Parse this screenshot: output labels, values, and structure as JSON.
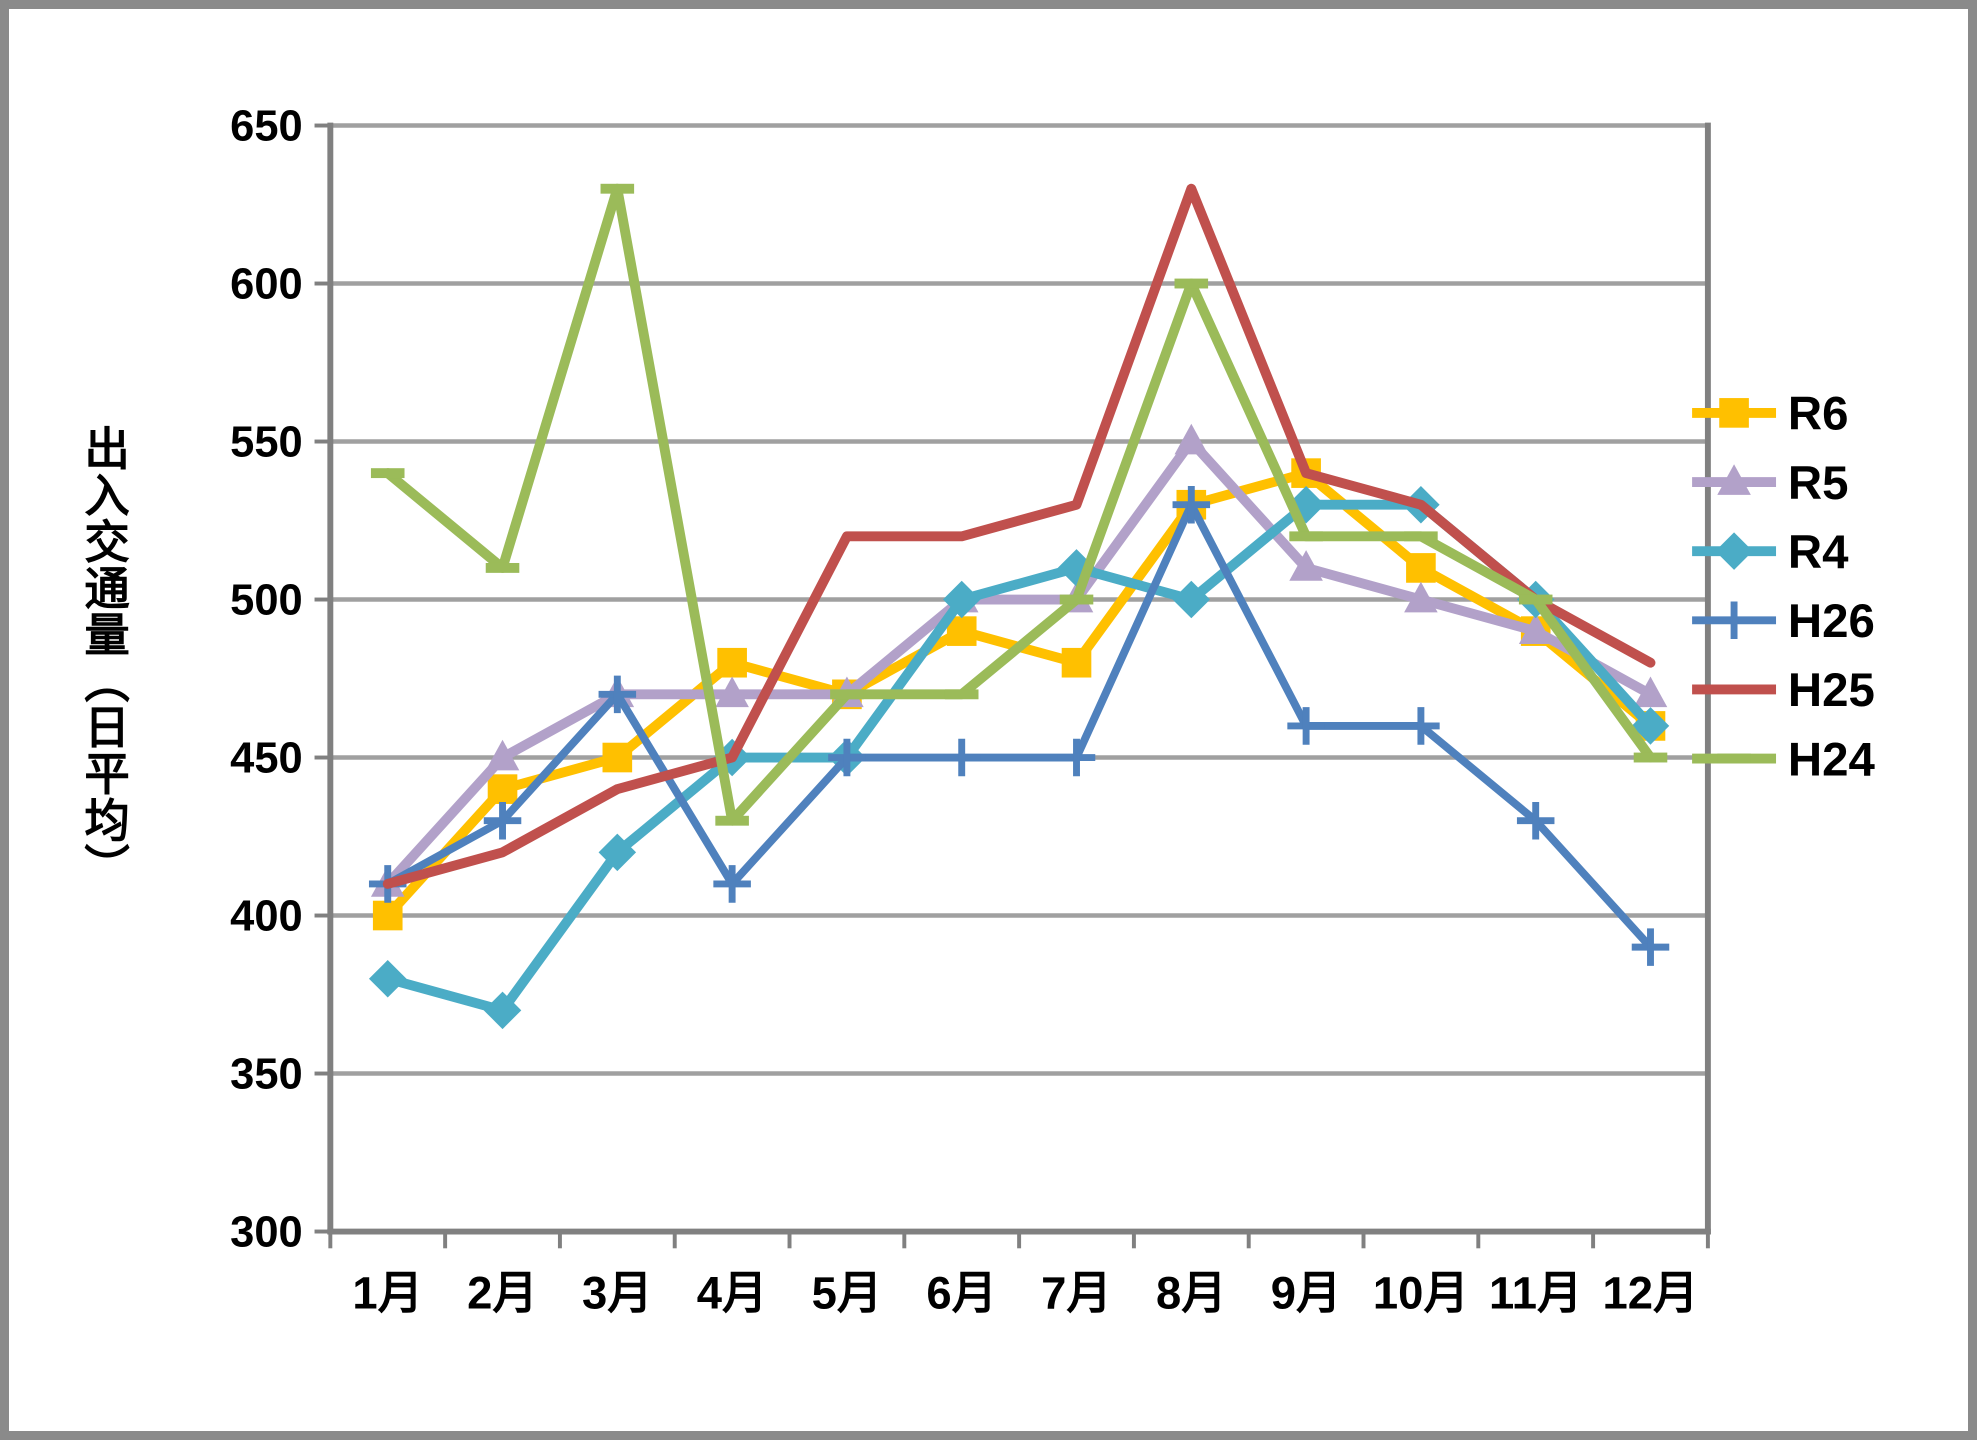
{
  "frame": {
    "border_color": "#8a8a8a",
    "background": "#ffffff",
    "gridline_color": "#a0a0a0",
    "axis_color": "#808080"
  },
  "chart_data": {
    "type": "line",
    "title": "",
    "ylabel": "出入交通量（日平均）",
    "xlabel": "",
    "grid": true,
    "legend_position": "right",
    "ylim": [
      300,
      650
    ],
    "y_ticks": [
      650,
      600,
      550,
      500,
      450,
      400,
      350,
      300
    ],
    "categories": [
      "1月",
      "2月",
      "3月",
      "4月",
      "5月",
      "6月",
      "7月",
      "8月",
      "9月",
      "10月",
      "11月",
      "12月"
    ],
    "series": [
      {
        "name": "R6",
        "color": "#FFC000",
        "marker": "square",
        "values": [
          400,
          440,
          450,
          480,
          470,
          490,
          480,
          530,
          540,
          510,
          490,
          460
        ]
      },
      {
        "name": "R5",
        "color": "#B2A1C9",
        "marker": "triangle",
        "values": [
          410,
          450,
          470,
          470,
          470,
          500,
          500,
          550,
          510,
          500,
          490,
          470
        ]
      },
      {
        "name": "R4",
        "color": "#4BACC6",
        "marker": "diamond",
        "values": [
          380,
          370,
          420,
          450,
          450,
          500,
          510,
          500,
          530,
          530,
          500,
          460
        ]
      },
      {
        "name": "H26",
        "color": "#4F81BD",
        "marker": "plus",
        "values": [
          410,
          430,
          470,
          410,
          450,
          450,
          450,
          530,
          460,
          460,
          430,
          390
        ]
      },
      {
        "name": "H25",
        "color": "#C0504D",
        "marker": "none",
        "values": [
          410,
          420,
          440,
          450,
          520,
          520,
          530,
          630,
          540,
          530,
          500,
          480
        ]
      },
      {
        "name": "H24",
        "color": "#9BBB59",
        "marker": "dash",
        "values": [
          540,
          510,
          630,
          430,
          470,
          470,
          500,
          600,
          520,
          520,
          500,
          450
        ]
      }
    ]
  }
}
